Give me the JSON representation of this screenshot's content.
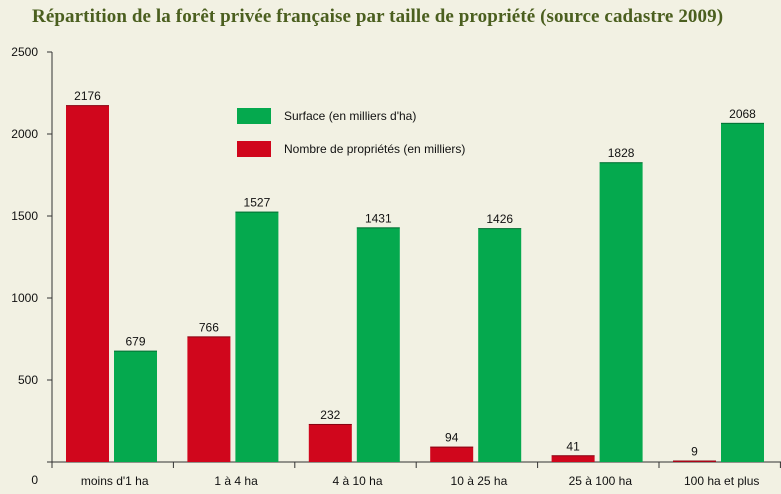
{
  "chart_data": {
    "type": "bar",
    "title": "Répartition de la forêt privée française par taille de propriété (source cadastre 2009)",
    "xlabel": "",
    "ylabel": "",
    "ylim": [
      0,
      2500
    ],
    "y_ticks": [
      "0",
      "500",
      "1000",
      "1500",
      "2000",
      "2500"
    ],
    "categories": [
      "moins d'1 ha",
      "1 à 4 ha",
      "4 à 10 ha",
      "10 à 25 ha",
      "25 à 100 ha",
      "100 ha et plus"
    ],
    "series": [
      {
        "name": "Nombre de propriétés (en milliers)",
        "color": "#d0061c",
        "values": [
          2176,
          766,
          232,
          94,
          41,
          9
        ]
      },
      {
        "name": "Surface (en milliers d'ha)",
        "color": "#05a94e",
        "values": [
          679,
          1527,
          1431,
          1426,
          1828,
          2068
        ]
      }
    ],
    "legend": {
      "placement": "top-center",
      "order": [
        "Surface (en milliers d'ha)",
        "Nombre de propriétés (en milliers)"
      ]
    },
    "grid": false
  }
}
